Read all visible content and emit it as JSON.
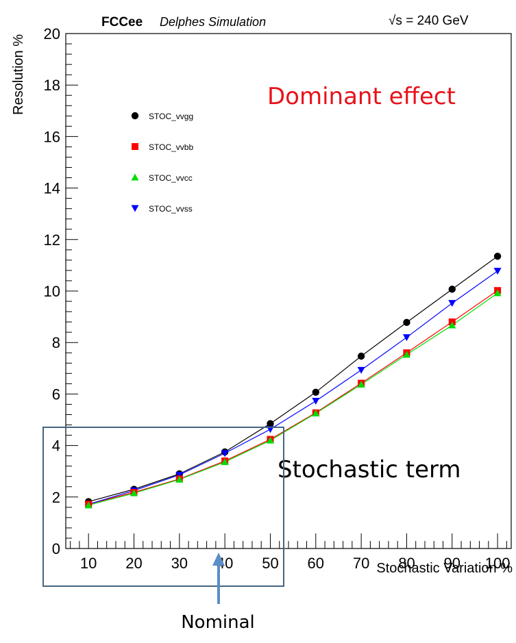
{
  "header": {
    "experiment": "FCCee",
    "simulation": "Delphes Simulation",
    "energy": "√s = 240 GeV"
  },
  "annotations": {
    "dominant": "Dominant effect",
    "stochastic": "Stochastic term",
    "nominal": "Nominal"
  },
  "colors": {
    "STOC_vvgg": "#000000",
    "STOC_vvbb": "#ff0000",
    "STOC_vvcc": "#00dd00",
    "STOC_vvss": "#0000ff",
    "annotation_red": "#e8121a",
    "box": "#44647f",
    "arrow": "#5b8dc7"
  },
  "chart_data": {
    "type": "line",
    "title": "",
    "xlabel": "Stochastic Variation %",
    "ylabel": "Resolution %",
    "x": [
      10,
      20,
      30,
      40,
      50,
      60,
      70,
      80,
      90,
      100
    ],
    "xlim": [
      5,
      103
    ],
    "ylim": [
      0,
      20
    ],
    "xticks": [
      10,
      20,
      30,
      40,
      50,
      60,
      70,
      80,
      90,
      100
    ],
    "yticks": [
      0,
      2,
      4,
      6,
      8,
      10,
      12,
      14,
      16,
      18,
      20
    ],
    "legend_position": "top-left",
    "series": [
      {
        "name": "STOC_vvgg",
        "marker": "circle",
        "values": [
          1.82,
          2.3,
          2.9,
          3.75,
          4.85,
          6.07,
          7.47,
          8.78,
          10.07,
          11.35
        ]
      },
      {
        "name": "STOC_vvbb",
        "marker": "square",
        "values": [
          1.72,
          2.18,
          2.7,
          3.4,
          4.24,
          5.27,
          6.42,
          7.6,
          8.8,
          10.02
        ]
      },
      {
        "name": "STOC_vvcc",
        "marker": "triangle-up",
        "values": [
          1.68,
          2.15,
          2.68,
          3.36,
          4.2,
          5.25,
          6.37,
          7.53,
          8.67,
          9.92
        ]
      },
      {
        "name": "STOC_vvss",
        "marker": "triangle-down",
        "values": [
          1.72,
          2.25,
          2.86,
          3.7,
          4.63,
          5.73,
          6.93,
          8.2,
          9.53,
          10.78
        ]
      }
    ]
  }
}
